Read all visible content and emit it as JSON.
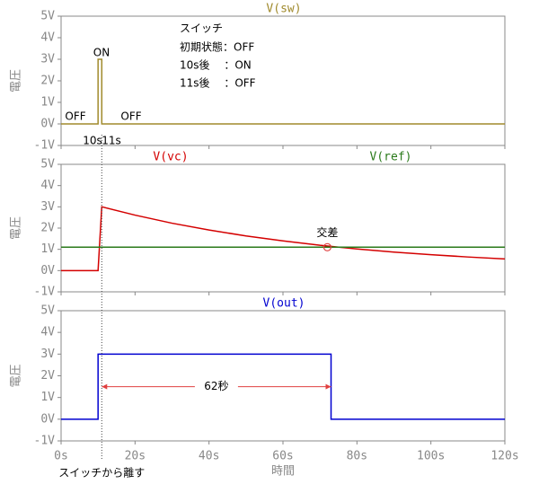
{
  "chart_data": [
    {
      "type": "line",
      "ylabel": "電圧",
      "xlim": [
        0,
        120
      ],
      "ylim": [
        -1,
        5
      ],
      "yticks": [
        {
          "value": 5,
          "label": "5V"
        },
        {
          "value": 4,
          "label": "4V"
        },
        {
          "value": 3,
          "label": "3V"
        },
        {
          "value": 2,
          "label": "2V"
        },
        {
          "value": 1,
          "label": "1V"
        },
        {
          "value": 0,
          "label": "0V"
        },
        {
          "value": -1,
          "label": "-1V"
        }
      ],
      "series": [
        {
          "name": "V(sw)",
          "color": "#a08a2c",
          "x": [
            0,
            10,
            10,
            11,
            11,
            120
          ],
          "values": [
            0,
            0,
            3,
            3,
            0,
            0
          ]
        }
      ],
      "annotations": [
        "スイッチ",
        "初期状態：OFF",
        "10s後　 ：ON",
        "11s後　 ：OFF",
        "ON",
        "OFF",
        "OFF",
        "10s",
        "11s"
      ]
    },
    {
      "type": "line",
      "ylabel": "電圧",
      "xlim": [
        0,
        120
      ],
      "ylim": [
        -1,
        5
      ],
      "yticks": [
        {
          "value": 5,
          "label": "5V"
        },
        {
          "value": 4,
          "label": "4V"
        },
        {
          "value": 3,
          "label": "3V"
        },
        {
          "value": 2,
          "label": "2V"
        },
        {
          "value": 1,
          "label": "1V"
        },
        {
          "value": 0,
          "label": "0V"
        },
        {
          "value": -1,
          "label": "-1V"
        }
      ],
      "series": [
        {
          "name": "V(vc)",
          "color": "#d40000",
          "x": [
            0,
            10,
            11,
            20,
            30,
            40,
            50,
            60,
            70,
            80,
            90,
            100,
            110,
            120
          ],
          "values": [
            0,
            0,
            3,
            2.61,
            2.23,
            1.91,
            1.63,
            1.4,
            1.19,
            1.02,
            0.87,
            0.75,
            0.64,
            0.55
          ]
        },
        {
          "name": "V(ref)",
          "color": "#2a7a1a",
          "x": [
            0,
            120
          ],
          "values": [
            1.1,
            1.1
          ]
        }
      ],
      "crossing": {
        "x": 72,
        "y": 1.1,
        "label": "交差"
      }
    },
    {
      "type": "line",
      "ylabel": "電圧",
      "xlabel": "時間",
      "xlim": [
        0,
        120
      ],
      "ylim": [
        -1,
        5
      ],
      "yticks": [
        {
          "value": 5,
          "label": "5V"
        },
        {
          "value": 4,
          "label": "4V"
        },
        {
          "value": 3,
          "label": "3V"
        },
        {
          "value": 2,
          "label": "2V"
        },
        {
          "value": 1,
          "label": "1V"
        },
        {
          "value": 0,
          "label": "0V"
        },
        {
          "value": -1,
          "label": "-1V"
        }
      ],
      "xticks": [
        {
          "value": 0,
          "label": "0s"
        },
        {
          "value": 20,
          "label": "20s"
        },
        {
          "value": 40,
          "label": "40s"
        },
        {
          "value": 60,
          "label": "60s"
        },
        {
          "value": 80,
          "label": "80s"
        },
        {
          "value": 100,
          "label": "100s"
        },
        {
          "value": 120,
          "label": "120s"
        }
      ],
      "series": [
        {
          "name": "V(out)",
          "color": "#0000d0",
          "x": [
            0,
            10,
            10,
            73,
            73,
            120
          ],
          "values": [
            0,
            0,
            3,
            3,
            0,
            0
          ]
        }
      ],
      "span": {
        "x": [
          11,
          73
        ],
        "y": 1.5,
        "label": "62秒"
      },
      "cursor": {
        "x": 11,
        "label": "スイッチから離す"
      }
    }
  ]
}
